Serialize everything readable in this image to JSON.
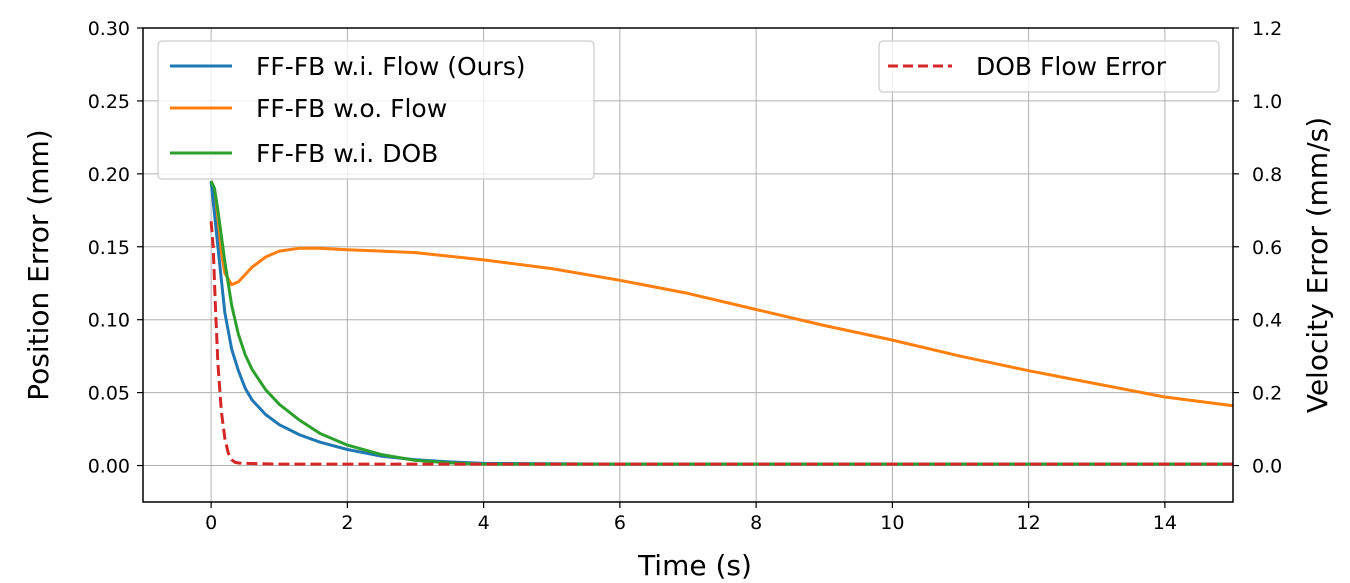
{
  "chart_data": {
    "type": "line",
    "xlabel": "Time (s)",
    "ylabel_left": "Position Error (mm)",
    "ylabel_right": "Velocity Error (mm/s)",
    "xlim": [
      -1,
      15
    ],
    "ylim_left": [
      -0.025,
      0.3
    ],
    "ylim_right": [
      -0.1,
      1.2
    ],
    "xticks": [
      0,
      2,
      4,
      6,
      8,
      10,
      12,
      14
    ],
    "xtick_labels": [
      "0",
      "2",
      "4",
      "6",
      "8",
      "10",
      "12",
      "14"
    ],
    "yticks_left": [
      0.0,
      0.05,
      0.1,
      0.15,
      0.2,
      0.25,
      0.3
    ],
    "ytick_labels_left": [
      "0.00",
      "0.05",
      "0.10",
      "0.15",
      "0.20",
      "0.25",
      "0.30"
    ],
    "yticks_right": [
      0.0,
      0.2,
      0.4,
      0.6,
      0.8,
      1.0,
      1.2
    ],
    "ytick_labels_right": [
      "0.0",
      "0.2",
      "0.4",
      "0.6",
      "0.8",
      "1.0",
      "1.2"
    ],
    "grid": true,
    "legend_left_placement": "upper-left",
    "legend_right_placement": "upper-right",
    "series": [
      {
        "name": "FF-FB w.i. Flow (Ours)",
        "axis": "left",
        "color": "#1f77b4",
        "style": "solid",
        "x": [
          0,
          0.1,
          0.2,
          0.3,
          0.4,
          0.5,
          0.6,
          0.8,
          1.0,
          1.3,
          1.6,
          2.0,
          2.5,
          3.0,
          3.5,
          4.0,
          6.0,
          10.0,
          15.0
        ],
        "y": [
          0.195,
          0.15,
          0.105,
          0.08,
          0.065,
          0.053,
          0.045,
          0.035,
          0.028,
          0.021,
          0.016,
          0.011,
          0.0065,
          0.004,
          0.0025,
          0.0015,
          0.001,
          0.001,
          0.001
        ]
      },
      {
        "name": "FF-FB w.o. Flow",
        "axis": "left",
        "color": "#ff7f0e",
        "style": "solid",
        "x": [
          0,
          0.1,
          0.2,
          0.3,
          0.4,
          0.5,
          0.6,
          0.8,
          1.0,
          1.3,
          1.6,
          2.0,
          3.0,
          4.0,
          5.0,
          6.0,
          7.0,
          8.0,
          9.0,
          10.0,
          11.0,
          12.0,
          13.0,
          14.0,
          15.0
        ],
        "y": [
          0.195,
          0.16,
          0.132,
          0.124,
          0.126,
          0.131,
          0.136,
          0.143,
          0.147,
          0.149,
          0.149,
          0.148,
          0.146,
          0.141,
          0.135,
          0.127,
          0.118,
          0.107,
          0.096,
          0.086,
          0.075,
          0.065,
          0.056,
          0.047,
          0.041
        ]
      },
      {
        "name": "FF-FB w.i. DOB",
        "axis": "left",
        "color": "#2ca02c",
        "style": "solid",
        "x": [
          0,
          0.05,
          0.1,
          0.2,
          0.3,
          0.4,
          0.5,
          0.6,
          0.8,
          1.0,
          1.3,
          1.6,
          2.0,
          2.5,
          3.0,
          3.5,
          4.0,
          6.0,
          10.0,
          15.0
        ],
        "y": [
          0.195,
          0.19,
          0.175,
          0.14,
          0.11,
          0.09,
          0.076,
          0.066,
          0.052,
          0.042,
          0.031,
          0.022,
          0.014,
          0.0075,
          0.0035,
          0.0018,
          0.001,
          0.001,
          0.001,
          0.001
        ]
      },
      {
        "name": "DOB Flow Error",
        "axis": "right",
        "color": "#d62728",
        "style": "dashed",
        "x": [
          0,
          0.03,
          0.06,
          0.1,
          0.15,
          0.2,
          0.25,
          0.3,
          0.35,
          0.4,
          0.5,
          0.7,
          1.0,
          4.0,
          8.0,
          12.0,
          15.0
        ],
        "y": [
          0.67,
          0.6,
          0.45,
          0.28,
          0.15,
          0.075,
          0.035,
          0.016,
          0.009,
          0.007,
          0.006,
          0.005,
          0.004,
          0.004,
          0.004,
          0.004,
          0.004
        ]
      }
    ]
  }
}
